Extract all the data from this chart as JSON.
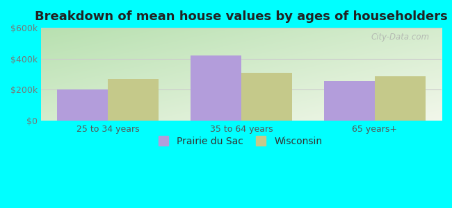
{
  "title": "Breakdown of mean house values by ages of householders",
  "categories": [
    "25 to 34 years",
    "35 to 64 years",
    "65 years+"
  ],
  "prairie_values": [
    200000,
    420000,
    255000
  ],
  "wisconsin_values": [
    270000,
    310000,
    285000
  ],
  "bar_color_prairie": "#b39ddb",
  "bar_color_wisconsin": "#c5c98a",
  "ylim": [
    0,
    600000
  ],
  "yticks": [
    0,
    200000,
    400000,
    600000
  ],
  "ytick_labels": [
    "$0",
    "$200k",
    "$400k",
    "$600k"
  ],
  "bg_color_topleft": "#c8eec0",
  "bg_color_topright": "#e8f8e8",
  "bg_color_bottom": "#d8f0d0",
  "outer_bg": "#00ffff",
  "legend_labels": [
    "Prairie du Sac",
    "Wisconsin"
  ],
  "title_fontsize": 13,
  "tick_fontsize": 9,
  "legend_fontsize": 10,
  "bar_width": 0.38,
  "group_positions": [
    1,
    2,
    3
  ],
  "watermark": "City-Data.com"
}
